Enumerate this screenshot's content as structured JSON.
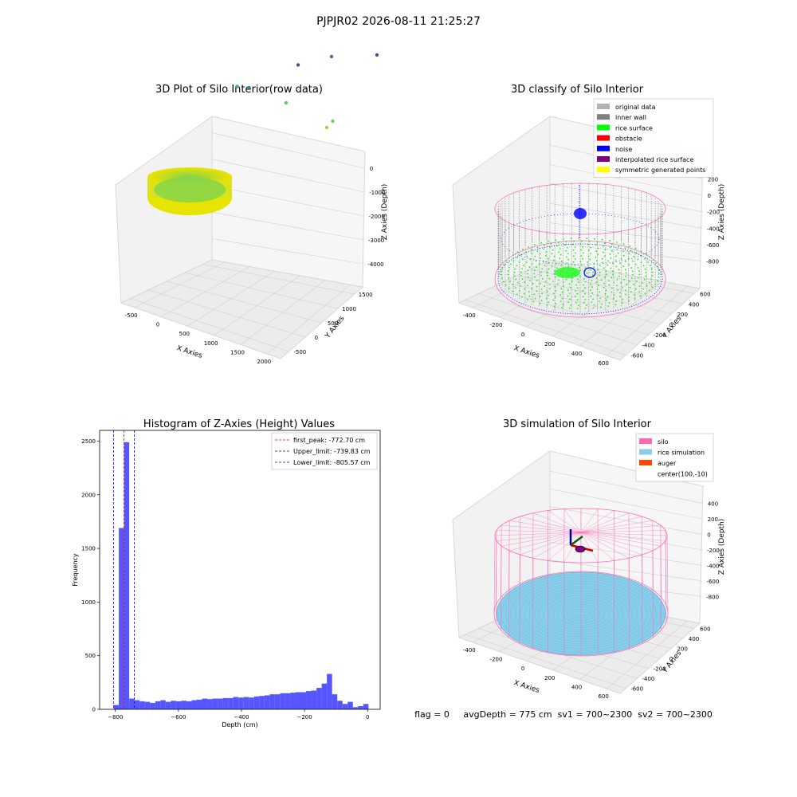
{
  "suptitle": "PJPJR02 2026-08-11 21:25:27",
  "status_line": "flag = 0     avgDepth = 775 cm  sv1 = 700~2300  sv2 = 700~2300",
  "colors": {
    "hist_bar": "#4d4dff",
    "peak_line": "#ff0000",
    "limit_line": "#0000ff",
    "silo": "#ff69b4",
    "rice": "#87ceeb",
    "auger": "#ff4500",
    "wall": "#808080",
    "rice_surface": "#00ff00",
    "noise": "#0000ff"
  },
  "chart_data": [
    {
      "type": "scatter",
      "projection": "3d",
      "title": "3D Plot of Silo Interior(row data)",
      "xlabel": "X Axies",
      "ylabel": "Y Axies",
      "zlabel": "Z Axies (Depth)",
      "xticks": [
        "-500",
        "0",
        "500",
        "1000",
        "1500",
        "2000"
      ],
      "yticks": [
        "-500",
        "0",
        "500",
        "1000",
        "1500"
      ],
      "zticks": [
        "0",
        "-1000",
        "-2000",
        "-3000",
        "-4000"
      ],
      "xlim": [
        -700,
        2300
      ],
      "ylim": [
        -700,
        1800
      ],
      "zlim": [
        -4500,
        200
      ],
      "colormap": "viridis",
      "outliers": [
        {
          "x": 1500,
          "y": 500,
          "z": -1000
        },
        {
          "x": 1550,
          "y": 550,
          "z": -1200
        },
        {
          "x": 1100,
          "y": 300,
          "z": -1800
        },
        {
          "x": 600,
          "y": 100,
          "z": -2200
        },
        {
          "x": 700,
          "y": 200,
          "z": -2100
        },
        {
          "x": 1200,
          "y": 400,
          "z": -3100
        },
        {
          "x": 1600,
          "y": 400,
          "z": -3800
        },
        {
          "x": 2100,
          "y": 500,
          "z": -4200
        }
      ]
    },
    {
      "type": "scatter",
      "projection": "3d",
      "title": "3D classify of Silo Interior",
      "xlabel": "X Axies",
      "ylabel": "Y Axies",
      "zlabel": "Z Axies (Depth)",
      "xticks": [
        "-400",
        "-200",
        "0",
        "200",
        "400",
        "600"
      ],
      "yticks": [
        "-600",
        "-400",
        "-200",
        "0",
        "200",
        "400",
        "600"
      ],
      "zticks": [
        "200",
        "0",
        "-200",
        "-400",
        "-600",
        "-800"
      ],
      "xlim": [
        -500,
        700
      ],
      "ylim": [
        -650,
        650
      ],
      "zlim": [
        -900,
        300
      ],
      "legend_position": "top-right",
      "legend": [
        {
          "label": "original data",
          "color": "#b3b3b3"
        },
        {
          "label": "inner wall",
          "color": "#808080"
        },
        {
          "label": "rice surface",
          "color": "#00ff00"
        },
        {
          "label": "obstacle",
          "color": "#ff0000"
        },
        {
          "label": "noise",
          "color": "#0000ff"
        },
        {
          "label": "interpolated rice surface",
          "color": "#800080"
        },
        {
          "label": "symmetric generated points",
          "color": "#ffff00"
        }
      ]
    },
    {
      "type": "bar",
      "subtype": "histogram",
      "title": "Histogram of Z-Axies (Height) Values",
      "xlabel": "Depth (cm)",
      "ylabel": "Frequency",
      "xlim": [
        -850,
        40
      ],
      "ylim": [
        0,
        2600
      ],
      "xticks": [
        -800,
        -600,
        -400,
        -200,
        0
      ],
      "yticks": [
        0,
        500,
        1000,
        1500,
        2000,
        2500
      ],
      "bin_width": 16.5,
      "bin_start": -805.57,
      "counts": [
        40,
        1690,
        2490,
        100,
        85,
        75,
        70,
        60,
        75,
        85,
        70,
        80,
        75,
        80,
        75,
        85,
        90,
        100,
        95,
        100,
        100,
        105,
        105,
        115,
        110,
        115,
        110,
        120,
        125,
        130,
        140,
        140,
        150,
        150,
        155,
        160,
        160,
        170,
        175,
        200,
        240,
        330,
        140,
        80,
        50,
        70,
        20,
        30,
        50
      ],
      "vlines": [
        {
          "label": "first_peak: -772.70 cm",
          "value": -772.7,
          "color": "#ff0000"
        },
        {
          "label": "Upper_limit: -739.83 cm",
          "value": -739.83,
          "color": "#0000ff"
        },
        {
          "label": "Lower_limit: -805.57 cm",
          "value": -805.57,
          "color": "#0000ff"
        }
      ],
      "legend_position": "top-right"
    },
    {
      "type": "area",
      "projection": "3d",
      "title": "3D simulation of Silo Interior",
      "xlabel": "X Axies",
      "ylabel": "Y Axies",
      "zlabel": "Z Axies (Depth)",
      "xticks": [
        "-400",
        "-200",
        "0",
        "200",
        "400",
        "600"
      ],
      "yticks": [
        "-600",
        "-400",
        "-200",
        "0",
        "200",
        "400",
        "600"
      ],
      "zticks": [
        "400",
        "200",
        "0",
        "-200",
        "-400",
        "-600",
        "-800"
      ],
      "xlim": [
        -500,
        700
      ],
      "ylim": [
        -650,
        650
      ],
      "zlim": [
        -900,
        500
      ],
      "legend_position": "top-right",
      "legend": [
        {
          "label": "silo",
          "color": "#ff69b4"
        },
        {
          "label": "rice simulation",
          "color": "#87ceeb"
        },
        {
          "label": "auger",
          "color": "#ff4500"
        },
        {
          "label": "center(100,-10)",
          "color": ""
        }
      ]
    }
  ]
}
